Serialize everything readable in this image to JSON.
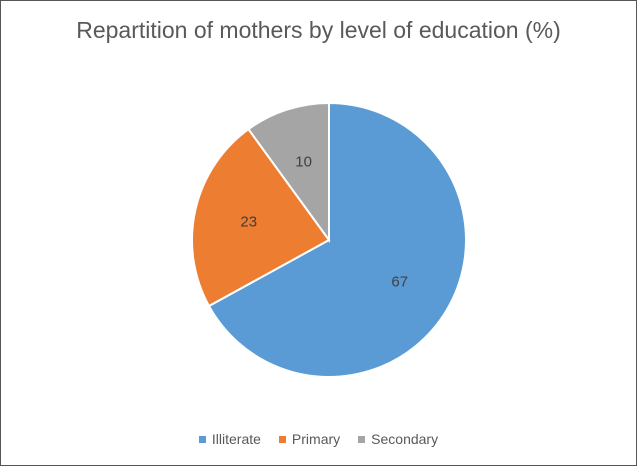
{
  "chart_data": {
    "type": "pie",
    "title": "Repartition of mothers by level of education (%)",
    "categories": [
      "Illiterate",
      "Primary",
      "Secondary"
    ],
    "values": [
      67,
      23,
      10
    ],
    "colors": [
      "#5B9BD5",
      "#ED7D31",
      "#A5A5A5"
    ],
    "data_labels": [
      "67",
      "23",
      "10"
    ],
    "legend_position": "bottom"
  }
}
